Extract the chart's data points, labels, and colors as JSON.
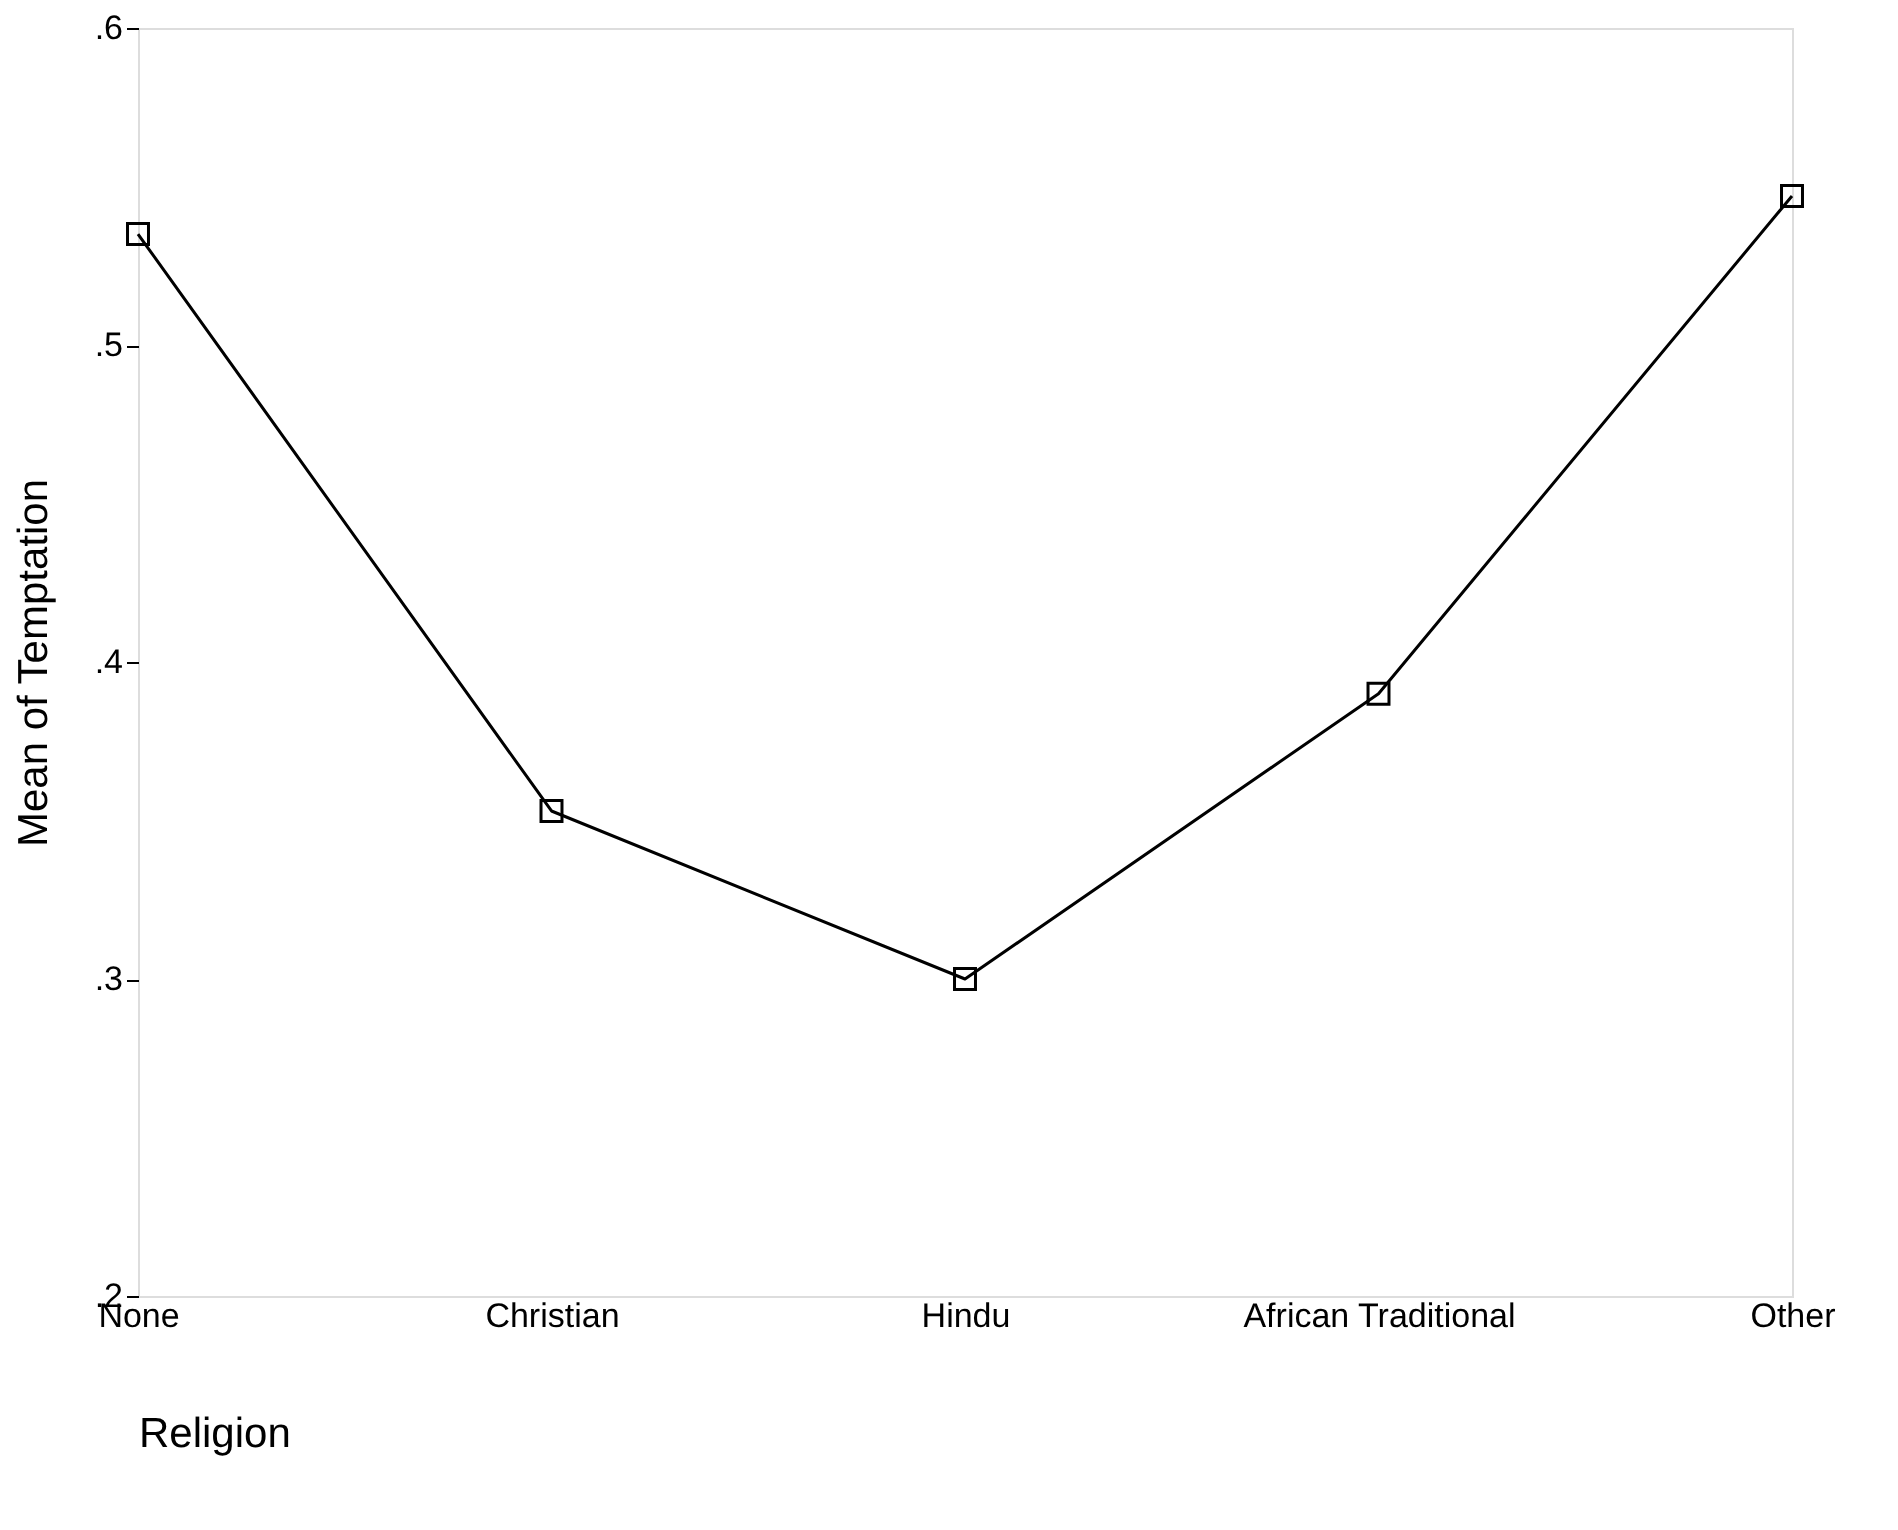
{
  "chart_data": {
    "type": "line",
    "xlabel": "Religion",
    "ylabel": "Mean of Temptation",
    "categories": [
      "None",
      "Christian",
      "Hindu",
      "African Traditional",
      "Other"
    ],
    "series": [
      {
        "color": "#000000",
        "values": [
          0.535,
          0.353,
          0.3,
          0.39,
          0.547
        ]
      }
    ],
    "ylim": [
      0.2,
      0.6
    ],
    "yticks": [
      {
        "value": 0.2,
        "label": ".2"
      },
      {
        "value": 0.3,
        "label": ".3"
      },
      {
        "value": 0.4,
        "label": ".4"
      },
      {
        "value": 0.5,
        "label": ".5"
      },
      {
        "value": 0.6,
        "label": ".6"
      }
    ],
    "grid": false,
    "marker": "square",
    "line_style": "solid"
  }
}
